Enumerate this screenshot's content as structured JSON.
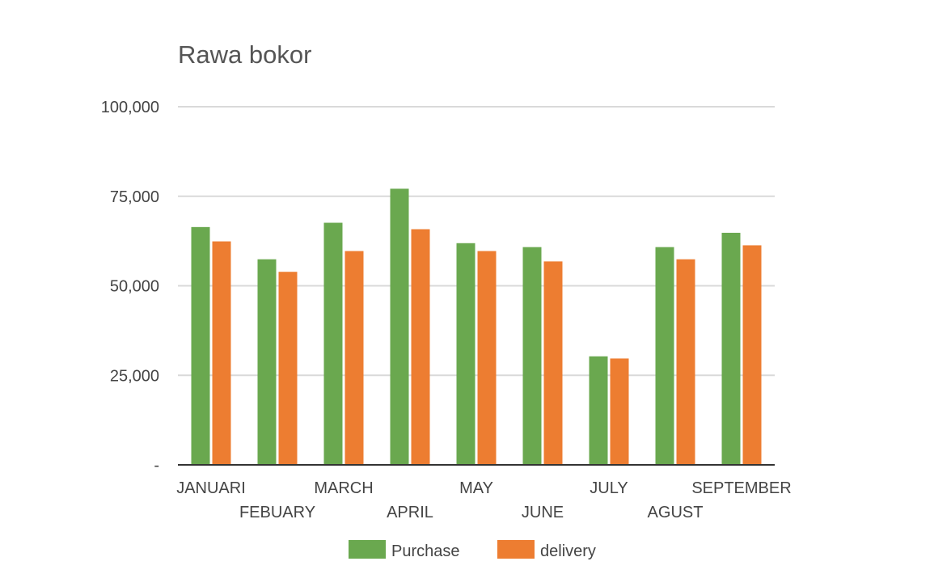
{
  "chart_data": {
    "type": "bar",
    "title": "Rawa bokor",
    "xlabel": "",
    "ylabel": "",
    "categories": [
      "JANUARI",
      "FEBUARY",
      "MARCH",
      "APRIL",
      "MAY",
      "JUNE",
      "JULY",
      "AGUST",
      "SEPTEMBER"
    ],
    "series": [
      {
        "name": "Purchase",
        "color": "#6aa84f",
        "values": [
          66400,
          57400,
          67600,
          77100,
          61900,
          60800,
          30300,
          60800,
          64800
        ]
      },
      {
        "name": "delivery",
        "color": "#ed7d31",
        "values": [
          62400,
          53900,
          59700,
          65800,
          59700,
          56800,
          29700,
          57400,
          61300
        ]
      }
    ],
    "ylim": [
      0,
      100000
    ],
    "yticks": [
      0,
      25000,
      50000,
      75000,
      100000
    ],
    "ytick_labels": [
      "-",
      "25,000",
      "50,000",
      "75,000",
      "100,000"
    ],
    "grid": true,
    "legend_position": "bottom"
  }
}
